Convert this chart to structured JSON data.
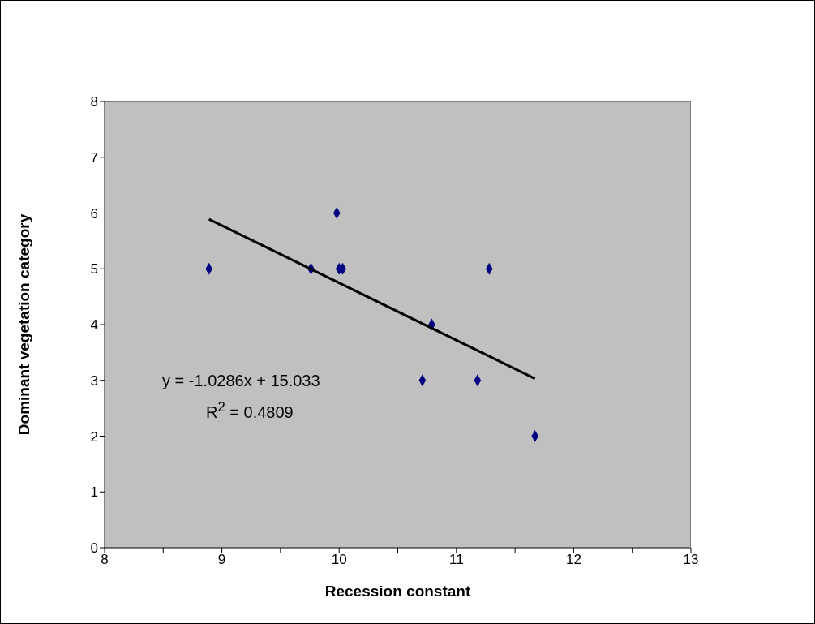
{
  "chart_data": {
    "type": "scatter",
    "xlabel": "Recession constant",
    "ylabel": "Dominant vegetation category",
    "series": [
      {
        "color": "#000080",
        "marker": "diamond",
        "x": [
          8.89,
          9.76,
          9.98,
          10.0,
          10.03,
          11.28,
          10.79,
          10.71,
          11.18,
          11.67
        ],
        "values": [
          5,
          5,
          6,
          5,
          5,
          5,
          4,
          3,
          3,
          2
        ]
      },
      {
        "type": "line",
        "color": "#000000",
        "marker": "none",
        "line_style": "solid",
        "x": [
          8.89,
          11.67
        ],
        "values": [
          5.89,
          3.03
        ]
      }
    ],
    "xlim": [
      8,
      13
    ],
    "xticks": [
      8,
      {
        "value": 8.5,
        "label": null
      },
      9,
      {
        "value": 9.5,
        "label": null
      },
      10,
      {
        "value": 10.5,
        "label": null
      },
      11,
      {
        "value": 11.5,
        "label": null
      },
      12,
      {
        "value": 12.5,
        "label": null
      },
      13
    ],
    "ylim": [
      0,
      8
    ],
    "yticks": [
      0,
      1,
      2,
      3,
      4,
      5,
      6,
      7,
      8
    ],
    "grid": false,
    "annotations": [
      "y = -1.0286x + 15.033",
      "R$^{2}$ = 0.4809"
    ]
  }
}
